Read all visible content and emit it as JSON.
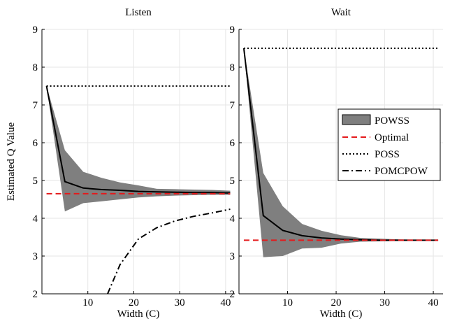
{
  "chart_data": [
    {
      "type": "line",
      "title": "Listen",
      "xlabel": "Width (C)",
      "ylabel": "Estimated Q Value",
      "xlim": [
        0,
        42
      ],
      "ylim": [
        2,
        9
      ],
      "xticks": [
        10,
        20,
        30,
        40
      ],
      "yticks": [
        2,
        3,
        4,
        5,
        6,
        7,
        8,
        9
      ],
      "grid": true,
      "series": [
        {
          "name": "POWSS",
          "kind": "band",
          "color": "#7f7f7f",
          "x": [
            1,
            5,
            9,
            13,
            17,
            21,
            25,
            29,
            33,
            37,
            41
          ],
          "lower": [
            7.5,
            4.18,
            4.4,
            4.45,
            4.5,
            4.55,
            4.58,
            4.6,
            4.61,
            4.62,
            4.62
          ],
          "upper": [
            7.5,
            5.8,
            5.23,
            5.07,
            4.95,
            4.87,
            4.78,
            4.77,
            4.76,
            4.75,
            4.73
          ]
        },
        {
          "name": "POWSS",
          "kind": "mean",
          "color": "#000000",
          "x": [
            1,
            5,
            9,
            13,
            17,
            21,
            25,
            29,
            33,
            37,
            41
          ],
          "y": [
            7.5,
            4.97,
            4.8,
            4.76,
            4.74,
            4.71,
            4.7,
            4.69,
            4.68,
            4.68,
            4.67
          ]
        },
        {
          "name": "Optimal",
          "kind": "dashed",
          "color": "#e41a1c",
          "x": [
            1,
            41
          ],
          "y": [
            4.65,
            4.65
          ]
        },
        {
          "name": "POSS",
          "kind": "dotted",
          "color": "#000000",
          "x": [
            1,
            41
          ],
          "y": [
            7.5,
            7.5
          ]
        },
        {
          "name": "POMCPOW",
          "kind": "dashdot",
          "color": "#000000",
          "x": [
            14.3,
            17,
            21,
            25,
            29,
            33,
            37,
            41
          ],
          "y": [
            2.0,
            2.77,
            3.45,
            3.75,
            3.93,
            4.05,
            4.14,
            4.24
          ]
        }
      ]
    },
    {
      "type": "line",
      "title": "Wait",
      "xlabel": "Width (C)",
      "ylabel": "",
      "xlim": [
        0,
        42
      ],
      "ylim": [
        2,
        9
      ],
      "xticks": [
        10,
        20,
        30,
        40
      ],
      "yticks": [
        2,
        3,
        4,
        5,
        6,
        7,
        8,
        9
      ],
      "grid": true,
      "legend": {
        "position": "right",
        "entries": [
          {
            "label": "POWSS",
            "kind": "band"
          },
          {
            "label": "Optimal",
            "kind": "dashed",
            "color": "#e41a1c"
          },
          {
            "label": "POSS",
            "kind": "dotted"
          },
          {
            "label": "POMCPOW",
            "kind": "dashdot"
          }
        ]
      },
      "series": [
        {
          "name": "POWSS",
          "kind": "band",
          "color": "#7f7f7f",
          "x": [
            1,
            5,
            9,
            13,
            17,
            21,
            25,
            29,
            33,
            37,
            41
          ],
          "lower": [
            8.5,
            2.97,
            3.0,
            3.2,
            3.22,
            3.33,
            3.38,
            3.39,
            3.4,
            3.41,
            3.41
          ],
          "upper": [
            8.5,
            5.2,
            4.32,
            3.85,
            3.67,
            3.55,
            3.48,
            3.46,
            3.44,
            3.43,
            3.43
          ]
        },
        {
          "name": "POWSS",
          "kind": "mean",
          "color": "#000000",
          "x": [
            1,
            5,
            9,
            13,
            17,
            21,
            25,
            29,
            33,
            37,
            41
          ],
          "y": [
            8.5,
            4.07,
            3.68,
            3.54,
            3.48,
            3.45,
            3.43,
            3.42,
            3.42,
            3.42,
            3.42
          ]
        },
        {
          "name": "Optimal",
          "kind": "dashed",
          "color": "#e41a1c",
          "x": [
            1,
            41
          ],
          "y": [
            3.42,
            3.42
          ]
        },
        {
          "name": "POSS",
          "kind": "dotted",
          "color": "#000000",
          "x": [
            1,
            41
          ],
          "y": [
            8.5,
            8.5
          ]
        }
      ]
    }
  ]
}
